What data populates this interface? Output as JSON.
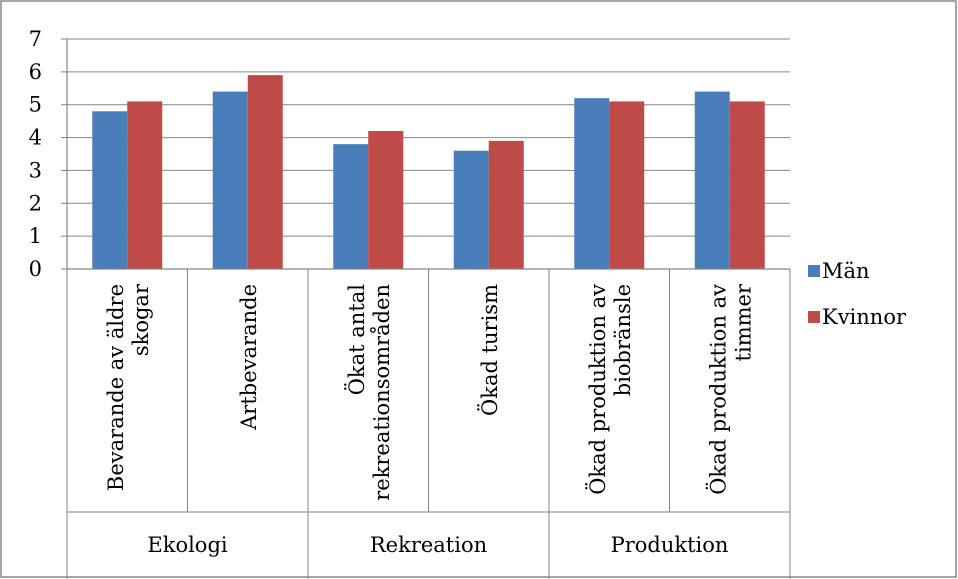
{
  "chart_data": {
    "type": "bar",
    "title": "",
    "xlabel": "",
    "ylabel": "",
    "ylim": [
      0,
      7
    ],
    "yticks": [
      0,
      1,
      2,
      3,
      4,
      5,
      6,
      7
    ],
    "grid": true,
    "legend_position": "right",
    "groups": [
      {
        "label": "Ekologi",
        "categories": [
          "Bevarande av äldre skogar",
          "Artbevarande"
        ]
      },
      {
        "label": "Rekreation",
        "categories": [
          "Ökat antal rekreationsområden",
          "Ökad turism"
        ]
      },
      {
        "label": "Produktion",
        "categories": [
          "Ökad produktion av biobränsle",
          "Ökad produktion av timmer"
        ]
      }
    ],
    "categories": [
      [
        "Bevarande av äldre",
        "skogar"
      ],
      [
        "Artbevarande"
      ],
      [
        "Ökat antal",
        "rekreationsområden"
      ],
      [
        "Ökad turism"
      ],
      [
        "Ökad produktion av",
        "biobränsle"
      ],
      [
        "Ökad produktion av",
        "timmer"
      ]
    ],
    "series": [
      {
        "name": "Män",
        "color": "#4a7ebb",
        "values": [
          4.8,
          5.4,
          3.8,
          3.6,
          5.2,
          5.4
        ]
      },
      {
        "name": "Kvinnor",
        "color": "#be4b48",
        "values": [
          5.1,
          5.9,
          4.2,
          3.9,
          5.1,
          5.1
        ]
      }
    ]
  }
}
